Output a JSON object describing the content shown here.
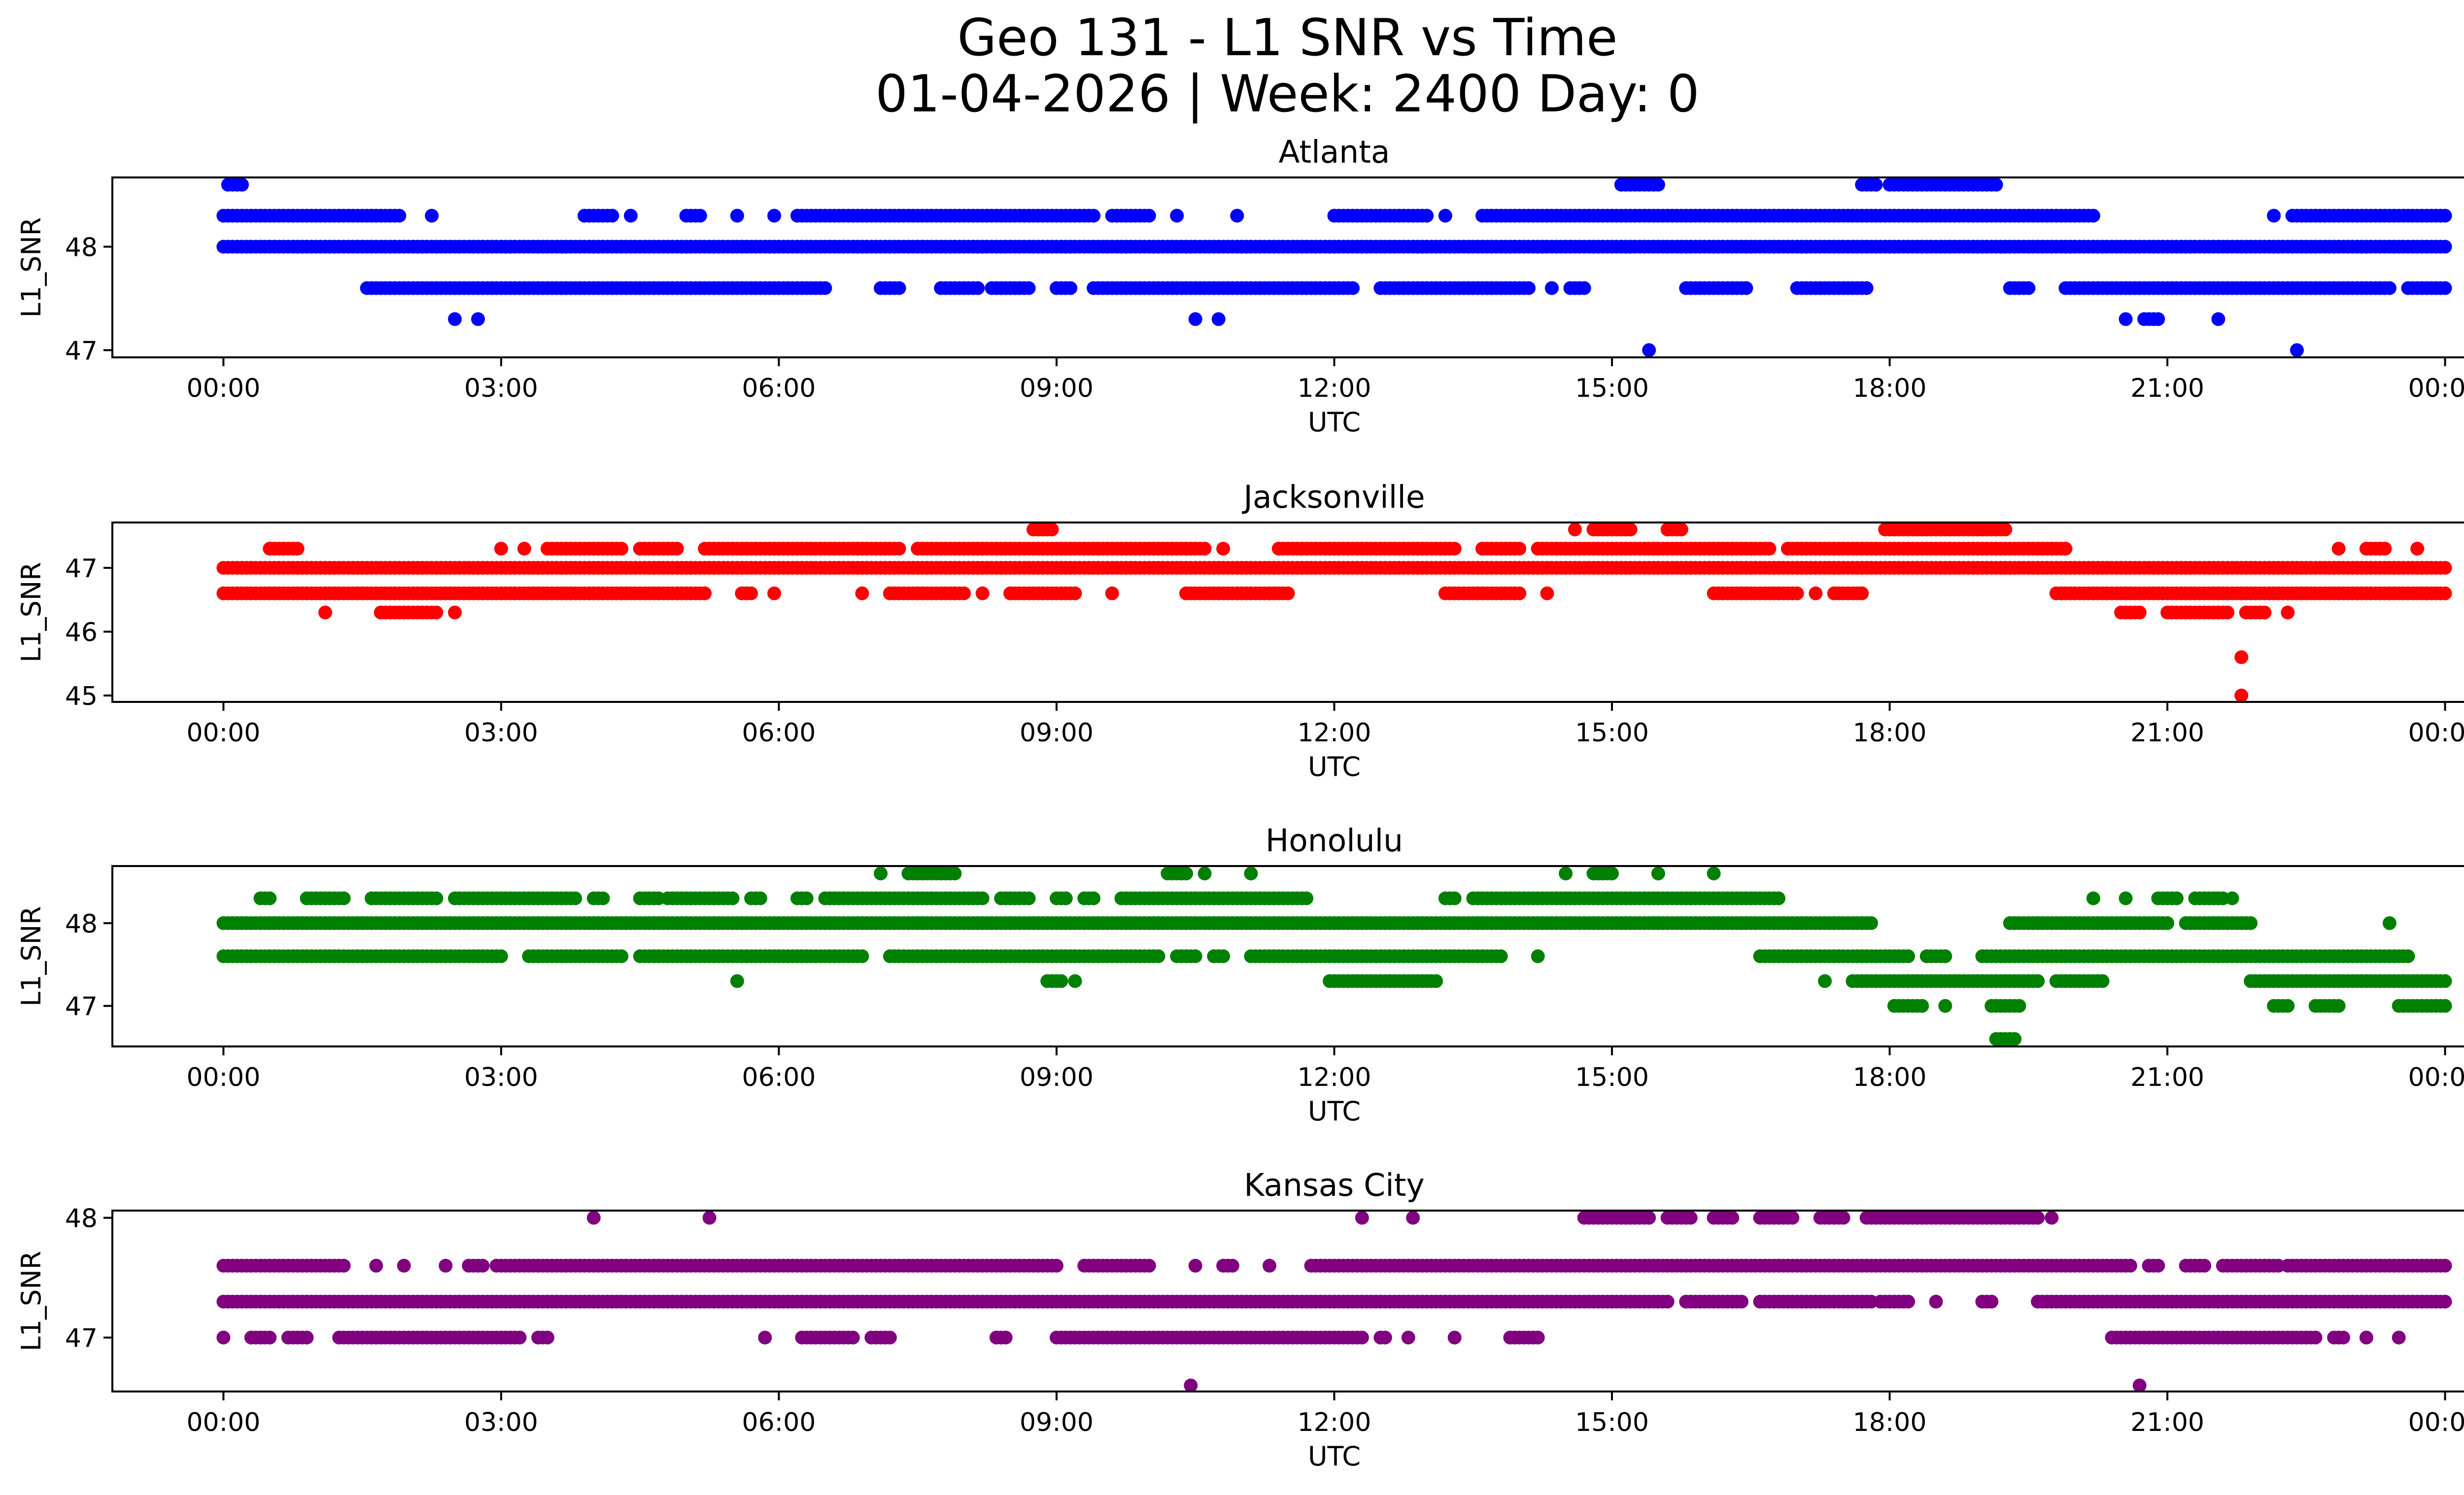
{
  "title": "Geo 131 - L1 SNR vs Time",
  "subtitle": "01-04-2026 | Week: 2400 Day: 0",
  "chart_data": [
    {
      "type": "scatter",
      "title": "Atlanta",
      "color": "#0000ff",
      "xlabel": "UTC",
      "ylabel": "L1_SNR",
      "xlim": [
        -1.2,
        25.2
      ],
      "ylim": [
        46.93,
        48.67
      ],
      "xticks": [
        0,
        3,
        6,
        9,
        12,
        15,
        18,
        21,
        24
      ],
      "xtick_labels": [
        "00:00",
        "03:00",
        "06:00",
        "09:00",
        "12:00",
        "15:00",
        "18:00",
        "21:00",
        "00:00"
      ],
      "yticks": [
        47,
        48
      ],
      "ytick_labels": [
        "47",
        "48"
      ],
      "series": [
        {
          "y": 48.0,
          "ranges": [
            [
              0.0,
              24.0
            ]
          ]
        },
        {
          "y": 48.3,
          "ranges": [
            [
              0.0,
              1.9
            ],
            [
              2.25,
              2.25
            ],
            [
              3.9,
              4.2
            ],
            [
              4.4,
              4.4
            ],
            [
              5.0,
              5.15
            ],
            [
              5.55,
              5.55
            ],
            [
              5.95,
              5.95
            ],
            [
              6.2,
              9.4
            ],
            [
              9.6,
              10.0
            ],
            [
              10.3,
              10.3
            ],
            [
              10.95,
              10.95
            ],
            [
              12.0,
              13.0
            ],
            [
              13.2,
              13.2
            ],
            [
              13.6,
              20.2
            ],
            [
              22.15,
              22.15
            ],
            [
              22.35,
              24.0
            ]
          ]
        },
        {
          "y": 47.6,
          "ranges": [
            [
              1.55,
              6.5
            ],
            [
              7.1,
              7.3
            ],
            [
              7.75,
              8.15
            ],
            [
              8.3,
              8.7
            ],
            [
              9.0,
              9.15
            ],
            [
              9.4,
              12.2
            ],
            [
              12.5,
              14.1
            ],
            [
              14.35,
              14.35
            ],
            [
              14.55,
              14.7
            ],
            [
              15.8,
              16.45
            ],
            [
              17.0,
              17.75
            ],
            [
              19.3,
              19.5
            ],
            [
              19.9,
              23.4
            ],
            [
              23.6,
              23.95
            ],
            [
              24.0,
              24.0
            ]
          ]
        },
        {
          "y": 48.6,
          "ranges": [
            [
              0.05,
              0.2
            ],
            [
              15.1,
              15.5
            ],
            [
              17.7,
              17.85
            ],
            [
              18.0,
              19.15
            ]
          ]
        },
        {
          "y": 47.3,
          "ranges": [
            [
              2.5,
              2.5
            ],
            [
              2.75,
              2.75
            ],
            [
              10.5,
              10.5
            ],
            [
              10.75,
              10.75
            ],
            [
              20.55,
              20.55
            ],
            [
              20.75,
              20.9
            ],
            [
              21.55,
              21.55
            ]
          ]
        },
        {
          "y": 47.0,
          "ranges": [
            [
              15.4,
              15.4
            ],
            [
              22.4,
              22.4
            ]
          ]
        }
      ]
    },
    {
      "type": "scatter",
      "title": "Jacksonville",
      "color": "#ff0000",
      "xlabel": "UTC",
      "ylabel": "L1_SNR",
      "xlim": [
        -1.2,
        25.2
      ],
      "ylim": [
        44.9,
        47.71
      ],
      "xticks": [
        0,
        3,
        6,
        9,
        12,
        15,
        18,
        21,
        24
      ],
      "xtick_labels": [
        "00:00",
        "03:00",
        "06:00",
        "09:00",
        "12:00",
        "15:00",
        "18:00",
        "21:00",
        "00:00"
      ],
      "yticks": [
        45,
        46,
        47
      ],
      "ytick_labels": [
        "45",
        "46",
        "47"
      ],
      "series": [
        {
          "y": 47.0,
          "ranges": [
            [
              0.0,
              24.0
            ]
          ]
        },
        {
          "y": 46.6,
          "ranges": [
            [
              0.0,
              5.2
            ],
            [
              5.6,
              5.7
            ],
            [
              5.95,
              5.95
            ],
            [
              6.9,
              6.9
            ],
            [
              7.2,
              8.0
            ],
            [
              8.2,
              8.2
            ],
            [
              8.5,
              9.2
            ],
            [
              9.6,
              9.6
            ],
            [
              10.4,
              11.5
            ],
            [
              13.2,
              14.0
            ],
            [
              14.3,
              14.3
            ],
            [
              16.1,
              17.0
            ],
            [
              17.2,
              17.2
            ],
            [
              17.4,
              17.7
            ],
            [
              19.8,
              24.0
            ]
          ]
        },
        {
          "y": 47.3,
          "ranges": [
            [
              0.5,
              0.8
            ],
            [
              3.0,
              3.0
            ],
            [
              3.25,
              3.25
            ],
            [
              3.5,
              4.3
            ],
            [
              4.5,
              4.9
            ],
            [
              5.2,
              7.3
            ],
            [
              7.5,
              10.6
            ],
            [
              10.8,
              10.8
            ],
            [
              11.4,
              13.3
            ],
            [
              13.6,
              14.0
            ],
            [
              14.2,
              16.7
            ],
            [
              16.9,
              19.9
            ],
            [
              22.85,
              22.85
            ],
            [
              23.15,
              23.35
            ],
            [
              23.7,
              23.7
            ]
          ]
        },
        {
          "y": 47.6,
          "ranges": [
            [
              8.75,
              8.95
            ],
            [
              14.6,
              14.6
            ],
            [
              14.8,
              15.2
            ],
            [
              15.6,
              15.75
            ],
            [
              17.95,
              19.25
            ]
          ]
        },
        {
          "y": 46.3,
          "ranges": [
            [
              1.1,
              1.1
            ],
            [
              1.7,
              2.3
            ],
            [
              2.5,
              2.5
            ],
            [
              20.5,
              20.7
            ],
            [
              21.0,
              21.65
            ],
            [
              21.85,
              22.05
            ],
            [
              22.3,
              22.3
            ]
          ]
        },
        {
          "y": 45.6,
          "ranges": [
            [
              21.8,
              21.8
            ]
          ]
        },
        {
          "y": 45.0,
          "ranges": [
            [
              21.8,
              21.8
            ]
          ]
        }
      ]
    },
    {
      "type": "scatter",
      "title": "Honolulu",
      "color": "#008000",
      "xlabel": "UTC",
      "ylabel": "L1_SNR",
      "xlim": [
        -1.2,
        25.2
      ],
      "ylim": [
        46.51,
        48.69
      ],
      "xticks": [
        0,
        3,
        6,
        9,
        12,
        15,
        18,
        21,
        24
      ],
      "xtick_labels": [
        "00:00",
        "03:00",
        "06:00",
        "09:00",
        "12:00",
        "15:00",
        "18:00",
        "21:00",
        "00:00"
      ],
      "yticks": [
        47,
        48
      ],
      "ytick_labels": [
        "47",
        "48"
      ],
      "series": [
        {
          "y": 48.0,
          "ranges": [
            [
              0.0,
              17.8
            ],
            [
              19.3,
              21.0
            ],
            [
              21.2,
              21.9
            ],
            [
              23.4,
              23.4
            ]
          ]
        },
        {
          "y": 47.6,
          "ranges": [
            [
              0.0,
              3.0
            ],
            [
              3.3,
              4.3
            ],
            [
              4.5,
              6.9
            ],
            [
              7.2,
              10.1
            ],
            [
              10.3,
              10.5
            ],
            [
              10.7,
              10.8
            ],
            [
              11.1,
              13.8
            ],
            [
              14.2,
              14.2
            ],
            [
              16.6,
              18.2
            ],
            [
              18.4,
              18.6
            ],
            [
              19.0,
              23.6
            ]
          ]
        },
        {
          "y": 48.3,
          "ranges": [
            [
              0.4,
              0.5
            ],
            [
              0.9,
              1.3
            ],
            [
              1.6,
              2.3
            ],
            [
              2.5,
              3.8
            ],
            [
              4.0,
              4.1
            ],
            [
              4.5,
              4.7
            ],
            [
              4.8,
              5.5
            ],
            [
              5.7,
              5.8
            ],
            [
              6.2,
              6.3
            ],
            [
              6.5,
              8.2
            ],
            [
              8.4,
              8.7
            ],
            [
              9.0,
              9.1
            ],
            [
              9.3,
              9.4
            ],
            [
              9.7,
              11.7
            ],
            [
              13.2,
              13.3
            ],
            [
              13.5,
              16.8
            ],
            [
              20.2,
              20.2
            ],
            [
              20.55,
              20.55
            ],
            [
              20.9,
              21.1
            ],
            [
              21.3,
              21.6
            ],
            [
              21.7,
              21.7
            ]
          ]
        },
        {
          "y": 48.6,
          "ranges": [
            [
              7.1,
              7.1
            ],
            [
              7.4,
              7.9
            ],
            [
              10.2,
              10.4
            ],
            [
              10.6,
              10.6
            ],
            [
              11.1,
              11.1
            ],
            [
              14.5,
              14.5
            ],
            [
              14.8,
              15.0
            ],
            [
              15.5,
              15.5
            ],
            [
              16.1,
              16.1
            ]
          ]
        },
        {
          "y": 47.3,
          "ranges": [
            [
              5.55,
              5.55
            ],
            [
              8.9,
              9.05
            ],
            [
              9.2,
              9.2
            ],
            [
              11.95,
              13.1
            ],
            [
              17.3,
              17.3
            ],
            [
              17.6,
              19.6
            ],
            [
              19.8,
              20.3
            ],
            [
              21.9,
              24.0
            ]
          ]
        },
        {
          "y": 47.0,
          "ranges": [
            [
              18.05,
              18.35
            ],
            [
              18.6,
              18.6
            ],
            [
              19.1,
              19.4
            ],
            [
              22.15,
              22.3
            ],
            [
              22.6,
              22.85
            ],
            [
              23.5,
              24.0
            ]
          ]
        },
        {
          "y": 46.6,
          "ranges": [
            [
              19.15,
              19.35
            ]
          ]
        }
      ]
    },
    {
      "type": "scatter",
      "title": "Kansas City",
      "color": "#800080",
      "xlabel": "UTC",
      "ylabel": "L1_SNR",
      "xlim": [
        -1.2,
        25.2
      ],
      "ylim": [
        46.55,
        48.06
      ],
      "xticks": [
        0,
        3,
        6,
        9,
        12,
        15,
        18,
        21,
        24
      ],
      "xtick_labels": [
        "00:00",
        "03:00",
        "06:00",
        "09:00",
        "12:00",
        "15:00",
        "18:00",
        "21:00",
        "00:00"
      ],
      "yticks": [
        47,
        48
      ],
      "ytick_labels": [
        "47",
        "48"
      ],
      "series": [
        {
          "y": 47.3,
          "ranges": [
            [
              0.0,
              15.6
            ],
            [
              15.8,
              16.4
            ],
            [
              16.6,
              17.8
            ],
            [
              17.9,
              18.2
            ],
            [
              18.5,
              18.5
            ],
            [
              19.0,
              19.1
            ],
            [
              19.6,
              24.0
            ]
          ]
        },
        {
          "y": 47.6,
          "ranges": [
            [
              0.0,
              1.3
            ],
            [
              1.65,
              1.65
            ],
            [
              1.95,
              1.95
            ],
            [
              2.4,
              2.4
            ],
            [
              2.65,
              2.8
            ],
            [
              2.95,
              9.0
            ],
            [
              9.3,
              10.0
            ],
            [
              10.5,
              10.5
            ],
            [
              10.8,
              10.9
            ],
            [
              11.3,
              11.3
            ],
            [
              11.75,
              20.6
            ],
            [
              20.8,
              20.9
            ],
            [
              21.2,
              21.4
            ],
            [
              21.6,
              22.2
            ],
            [
              22.3,
              24.0
            ]
          ]
        },
        {
          "y": 47.0,
          "ranges": [
            [
              0.0,
              0.0
            ],
            [
              0.3,
              0.5
            ],
            [
              0.7,
              0.9
            ],
            [
              1.25,
              3.2
            ],
            [
              3.4,
              3.5
            ],
            [
              5.85,
              5.85
            ],
            [
              6.25,
              6.8
            ],
            [
              7.0,
              7.2
            ],
            [
              8.35,
              8.45
            ],
            [
              9.0,
              12.3
            ],
            [
              12.5,
              12.55
            ],
            [
              12.8,
              12.8
            ],
            [
              13.3,
              13.3
            ],
            [
              13.9,
              14.2
            ],
            [
              20.4,
              22.6
            ],
            [
              22.8,
              22.9
            ],
            [
              23.15,
              23.15
            ],
            [
              23.5,
              23.5
            ]
          ]
        },
        {
          "y": 48.0,
          "ranges": [
            [
              4.0,
              4.0
            ],
            [
              5.25,
              5.25
            ],
            [
              12.3,
              12.3
            ],
            [
              12.85,
              12.85
            ],
            [
              14.7,
              15.4
            ],
            [
              15.6,
              15.85
            ],
            [
              16.1,
              16.3
            ],
            [
              16.6,
              16.95
            ],
            [
              17.25,
              17.5
            ],
            [
              17.75,
              19.6
            ],
            [
              19.75,
              19.75
            ]
          ]
        },
        {
          "y": 46.6,
          "ranges": [
            [
              10.45,
              10.45
            ],
            [
              20.7,
              20.7
            ]
          ]
        }
      ]
    }
  ]
}
